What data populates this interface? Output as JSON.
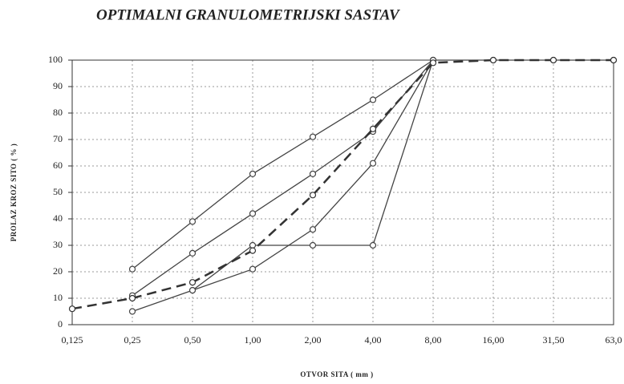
{
  "chart_data": {
    "type": "line",
    "title": "OPTIMALNI GRANULOMETRIJSKI   SASTAV",
    "x_label": "OTVOR  SITA  ( mm )",
    "y_label": "PROLAZ  KROZ  SITO  ( % )",
    "categories": [
      "0,125",
      "0,25",
      "0,50",
      "1,00",
      "2,00",
      "4,00",
      "8,00",
      "16,00",
      "31,50",
      "63,0"
    ],
    "ylim": [
      0,
      100
    ],
    "yticks": [
      0,
      10,
      20,
      30,
      40,
      50,
      60,
      70,
      80,
      90,
      100
    ],
    "grid": true,
    "series": [
      {
        "color": "#444444",
        "dash": false,
        "values": [
          null,
          21,
          39,
          57,
          71,
          85,
          100,
          100,
          100,
          100
        ]
      },
      {
        "color": "#444444",
        "dash": false,
        "values": [
          null,
          11,
          27,
          42,
          57,
          73,
          100,
          null,
          null,
          null
        ]
      },
      {
        "color": "#444444",
        "dash": false,
        "values": [
          null,
          5,
          13,
          21,
          36,
          61,
          100,
          null,
          null,
          null
        ]
      },
      {
        "color": "#444444",
        "dash": false,
        "values": [
          null,
          null,
          13,
          30,
          30,
          30,
          100,
          null,
          null,
          null
        ]
      },
      {
        "color": "#333333",
        "dash": true,
        "values": [
          6,
          10,
          16,
          28,
          49,
          74,
          99,
          100,
          100,
          100
        ]
      }
    ]
  }
}
